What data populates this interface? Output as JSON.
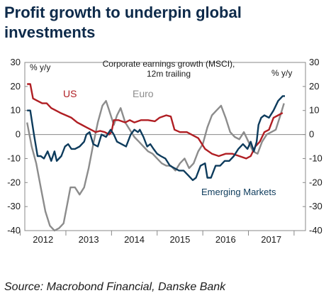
{
  "title": "Profit growth to underpin global investments",
  "source": "Source: Macrobond Financial, Danske Bank",
  "chart_data": {
    "type": "line",
    "title": "Corporate earnings growth (MSCI),\n12m trailing",
    "ylabel_left": "% y/y",
    "ylabel_right": "% y/y",
    "ylim": [
      -40,
      30
    ],
    "yticks": [
      30,
      20,
      10,
      0,
      -10,
      -20,
      -30,
      -40
    ],
    "xlim": [
      2011.6,
      2017.75
    ],
    "xtick_labels": [
      {
        "label": "2012",
        "x": 2012.0
      },
      {
        "label": "2013",
        "x": 2013.0
      },
      {
        "label": "2014",
        "x": 2014.0
      },
      {
        "label": "2015",
        "x": 2015.0
      },
      {
        "label": "2016",
        "x": 2016.0
      },
      {
        "label": "2017",
        "x": 2017.0
      }
    ],
    "grid": false,
    "series": [
      {
        "name": "US",
        "color": "#b01e23",
        "points": [
          [
            2011.65,
            21
          ],
          [
            2011.72,
            21
          ],
          [
            2011.78,
            15
          ],
          [
            2011.88,
            14
          ],
          [
            2011.98,
            13
          ],
          [
            2012.08,
            13
          ],
          [
            2012.18,
            11
          ],
          [
            2012.28,
            10
          ],
          [
            2012.38,
            9
          ],
          [
            2012.5,
            8
          ],
          [
            2012.62,
            7
          ],
          [
            2012.75,
            5
          ],
          [
            2012.85,
            4
          ],
          [
            2012.95,
            3
          ],
          [
            2013.05,
            2
          ],
          [
            2013.15,
            1
          ],
          [
            2013.25,
            1.5
          ],
          [
            2013.35,
            1
          ],
          [
            2013.45,
            0
          ],
          [
            2013.5,
            1
          ],
          [
            2013.55,
            6
          ],
          [
            2013.65,
            6
          ],
          [
            2013.8,
            5
          ],
          [
            2013.9,
            6
          ],
          [
            2014.0,
            5
          ],
          [
            2014.15,
            6
          ],
          [
            2014.3,
            6
          ],
          [
            2014.45,
            5.5
          ],
          [
            2014.55,
            7
          ],
          [
            2014.7,
            8
          ],
          [
            2014.8,
            7.5
          ],
          [
            2014.88,
            2
          ],
          [
            2015.0,
            1
          ],
          [
            2015.15,
            1
          ],
          [
            2015.25,
            0
          ],
          [
            2015.4,
            -1.5
          ],
          [
            2015.55,
            -6
          ],
          [
            2015.7,
            -8
          ],
          [
            2015.85,
            -9
          ],
          [
            2016.0,
            -8
          ],
          [
            2016.15,
            -8
          ],
          [
            2016.3,
            -9
          ],
          [
            2016.45,
            -10
          ],
          [
            2016.55,
            -9
          ],
          [
            2016.65,
            -5
          ],
          [
            2016.75,
            -3
          ],
          [
            2016.85,
            1
          ],
          [
            2016.95,
            2
          ],
          [
            2017.05,
            7
          ],
          [
            2017.15,
            8
          ],
          [
            2017.25,
            9
          ]
        ]
      },
      {
        "name": "Euro",
        "color": "#8c8c8c",
        "points": [
          [
            2011.65,
            5
          ],
          [
            2011.75,
            -5
          ],
          [
            2011.85,
            -12
          ],
          [
            2011.95,
            -22
          ],
          [
            2012.05,
            -32
          ],
          [
            2012.15,
            -38
          ],
          [
            2012.25,
            -40
          ],
          [
            2012.35,
            -39
          ],
          [
            2012.45,
            -37
          ],
          [
            2012.55,
            -27
          ],
          [
            2012.6,
            -22
          ],
          [
            2012.7,
            -22
          ],
          [
            2012.8,
            -25
          ],
          [
            2012.9,
            -22
          ],
          [
            2013.0,
            -14
          ],
          [
            2013.1,
            -4
          ],
          [
            2013.2,
            5
          ],
          [
            2013.3,
            12
          ],
          [
            2013.38,
            14
          ],
          [
            2013.45,
            10
          ],
          [
            2013.55,
            4
          ],
          [
            2013.62,
            8
          ],
          [
            2013.7,
            11
          ],
          [
            2013.8,
            5
          ],
          [
            2013.9,
            2
          ],
          [
            2014.0,
            -1
          ],
          [
            2014.1,
            -3
          ],
          [
            2014.2,
            -5
          ],
          [
            2014.3,
            -7
          ],
          [
            2014.4,
            -8
          ],
          [
            2014.5,
            -10
          ],
          [
            2014.6,
            -12
          ],
          [
            2014.7,
            -13
          ],
          [
            2014.8,
            -13
          ],
          [
            2014.9,
            -15
          ],
          [
            2015.0,
            -12
          ],
          [
            2015.1,
            -10
          ],
          [
            2015.2,
            -14
          ],
          [
            2015.3,
            -12
          ],
          [
            2015.4,
            -7
          ],
          [
            2015.5,
            -4
          ],
          [
            2015.6,
            3
          ],
          [
            2015.7,
            8
          ],
          [
            2015.8,
            10
          ],
          [
            2015.9,
            12
          ],
          [
            2016.0,
            7
          ],
          [
            2016.1,
            1
          ],
          [
            2016.2,
            -1
          ],
          [
            2016.3,
            -2
          ],
          [
            2016.4,
            1
          ],
          [
            2016.5,
            -3
          ],
          [
            2016.6,
            -7
          ],
          [
            2016.7,
            -8
          ],
          [
            2016.8,
            -3
          ],
          [
            2016.9,
            0
          ],
          [
            2017.0,
            1
          ],
          [
            2017.1,
            2
          ],
          [
            2017.2,
            8
          ],
          [
            2017.28,
            13
          ]
        ]
      },
      {
        "name": "Emerging Markets",
        "color": "#0d3b5c",
        "points": [
          [
            2011.65,
            10
          ],
          [
            2011.72,
            10
          ],
          [
            2011.8,
            0
          ],
          [
            2011.88,
            -9
          ],
          [
            2011.95,
            -9
          ],
          [
            2012.02,
            -10
          ],
          [
            2012.1,
            -7
          ],
          [
            2012.18,
            -11
          ],
          [
            2012.25,
            -7
          ],
          [
            2012.3,
            -11
          ],
          [
            2012.4,
            -9
          ],
          [
            2012.48,
            -5
          ],
          [
            2012.55,
            -4
          ],
          [
            2012.62,
            -6
          ],
          [
            2012.7,
            -6
          ],
          [
            2012.8,
            -5
          ],
          [
            2012.9,
            -3
          ],
          [
            2012.95,
            0
          ],
          [
            2013.02,
            1
          ],
          [
            2013.1,
            -4
          ],
          [
            2013.2,
            -5
          ],
          [
            2013.28,
            0
          ],
          [
            2013.38,
            -1
          ],
          [
            2013.48,
            2
          ],
          [
            2013.55,
            0
          ],
          [
            2013.62,
            -3
          ],
          [
            2013.72,
            -4
          ],
          [
            2013.82,
            -5
          ],
          [
            2013.92,
            0
          ],
          [
            2014.0,
            2
          ],
          [
            2014.08,
            1
          ],
          [
            2014.12,
            2
          ],
          [
            2014.2,
            -1
          ],
          [
            2014.28,
            -5
          ],
          [
            2014.35,
            -4
          ],
          [
            2014.42,
            -6
          ],
          [
            2014.5,
            -8
          ],
          [
            2014.58,
            -9
          ],
          [
            2014.68,
            -10
          ],
          [
            2014.78,
            -13
          ],
          [
            2014.88,
            -14
          ],
          [
            2014.98,
            -15
          ],
          [
            2015.08,
            -15
          ],
          [
            2015.18,
            -17
          ],
          [
            2015.28,
            -19
          ],
          [
            2015.35,
            -18
          ],
          [
            2015.45,
            -13
          ],
          [
            2015.55,
            -12
          ],
          [
            2015.6,
            -18
          ],
          [
            2015.68,
            -18
          ],
          [
            2015.78,
            -13
          ],
          [
            2015.88,
            -13
          ],
          [
            2015.98,
            -11
          ],
          [
            2016.08,
            -11
          ],
          [
            2016.18,
            -9
          ],
          [
            2016.28,
            -6
          ],
          [
            2016.38,
            -4
          ],
          [
            2016.48,
            -6
          ],
          [
            2016.55,
            -3
          ],
          [
            2016.62,
            -7
          ],
          [
            2016.68,
            -3
          ],
          [
            2016.72,
            4
          ],
          [
            2016.78,
            7
          ],
          [
            2016.85,
            8
          ],
          [
            2016.95,
            7
          ],
          [
            2017.05,
            10
          ],
          [
            2017.15,
            14
          ],
          [
            2017.25,
            16
          ],
          [
            2017.3,
            16
          ]
        ]
      }
    ],
    "annotations": [
      {
        "text": "US",
        "color": "#b01e23"
      },
      {
        "text": "Euro",
        "color": "#8c8c8c"
      },
      {
        "text": "Emerging Markets",
        "color": "#0d3b5c"
      }
    ]
  }
}
